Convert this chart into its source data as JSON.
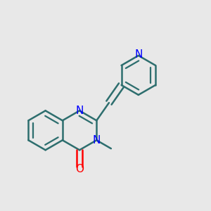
{
  "bg_color": "#e8e8e8",
  "bond_color": "#2d6e6e",
  "nitrogen_color": "#0000ff",
  "oxygen_color": "#ff0000",
  "lw": 1.8,
  "dbo": 0.015,
  "fs": 11,
  "xlim": [
    0.0,
    1.0
  ],
  "ylim": [
    0.05,
    1.05
  ]
}
